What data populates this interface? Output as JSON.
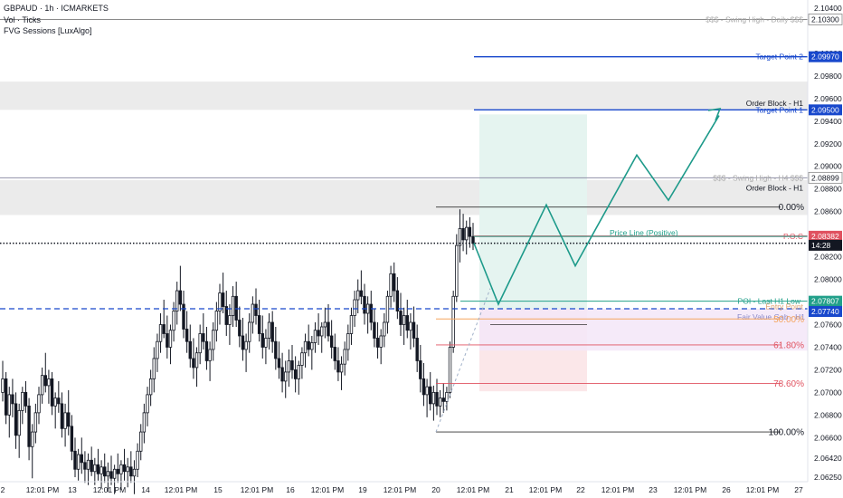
{
  "legend": {
    "symbol": "GBPAUD · 1h · ICMARKETS",
    "indicator1": "Vol · Ticks",
    "indicator2": "FVG Sessions [LuxAlgo]"
  },
  "colors": {
    "up": "#131722",
    "down": "#131722",
    "blue_line": "#1848cc",
    "teal": "#22a08a",
    "red": "#e05260",
    "orange": "#f5a55f",
    "gray_zone": "#ebebeb",
    "fvg": "#f3e6f8",
    "target_zone": "#e5f4f0",
    "stop_zone": "#fbe7e9"
  },
  "chart_data": {
    "type": "candlestick",
    "y_axis": {
      "ticks": [
        "2.10400",
        "2.10300",
        "2.10000",
        "2.09800",
        "2.09600",
        "2.09400",
        "2.09200",
        "2.09000",
        "2.08800",
        "2.08600",
        "2.08400",
        "2.08200",
        "2.08000",
        "2.07800",
        "2.07600",
        "2.07400",
        "2.07200",
        "2.07000",
        "2.06800",
        "2.06600",
        "2.06420",
        "2.06250"
      ],
      "range": [
        2.0621,
        2.1044
      ]
    },
    "x_axis": {
      "ticks": [
        "2",
        "12:01 PM",
        "13",
        "12:01 PM",
        "14",
        "12:01 PM",
        "15",
        "12:01 PM",
        "16",
        "12:01 PM",
        "19",
        "12:01 PM",
        "20",
        "12:01 PM",
        "21",
        "12:01 PM",
        "22",
        "12:01 PM",
        "23",
        "12:01 PM",
        "26",
        "12:01 PM",
        "27"
      ]
    },
    "candles": [
      [
        2.07,
        2.0728,
        2.0692,
        2.0712
      ],
      [
        2.0712,
        2.0718,
        2.0672,
        2.068
      ],
      [
        2.068,
        2.0705,
        2.066,
        2.0698
      ],
      [
        2.0698,
        2.0712,
        2.0678,
        2.069
      ],
      [
        2.069,
        2.07,
        2.065,
        2.0662
      ],
      [
        2.0662,
        2.069,
        2.0642,
        2.0684
      ],
      [
        2.0684,
        2.0705,
        2.0672,
        2.07
      ],
      [
        2.07,
        2.071,
        2.0682,
        2.0688
      ],
      [
        2.0688,
        2.0695,
        2.064,
        2.0652
      ],
      [
        2.0652,
        2.0672,
        2.0624,
        2.0665
      ],
      [
        2.0665,
        2.069,
        2.0655,
        2.0682
      ],
      [
        2.0682,
        2.0705,
        2.0672,
        2.0698
      ],
      [
        2.0698,
        2.0722,
        2.069,
        2.0715
      ],
      [
        2.0715,
        2.0735,
        2.07,
        2.0706
      ],
      [
        2.0706,
        2.072,
        2.069,
        2.0712
      ],
      [
        2.0712,
        2.0718,
        2.068,
        2.0688
      ],
      [
        2.0688,
        2.07,
        2.0668,
        2.0695
      ],
      [
        2.0695,
        2.071,
        2.0682,
        2.069
      ],
      [
        2.069,
        2.07,
        2.066,
        2.0668
      ],
      [
        2.0668,
        2.069,
        2.0652,
        2.0682
      ],
      [
        2.0682,
        2.0702,
        2.0662,
        2.067
      ],
      [
        2.067,
        2.068,
        2.064,
        2.0648
      ],
      [
        2.0648,
        2.066,
        2.0625,
        2.0632
      ],
      [
        2.0632,
        2.065,
        2.0622,
        2.0645
      ],
      [
        2.0645,
        2.066,
        2.0628,
        2.0638
      ],
      [
        2.0638,
        2.0648,
        2.062,
        2.0632
      ],
      [
        2.0632,
        2.0646,
        2.0618,
        2.064
      ],
      [
        2.064,
        2.0652,
        2.0626,
        2.063
      ],
      [
        2.063,
        2.0642,
        2.0618,
        2.0636
      ],
      [
        2.0636,
        2.065,
        2.0622,
        2.0628
      ],
      [
        2.0628,
        2.064,
        2.0615,
        2.0634
      ],
      [
        2.0634,
        2.0646,
        2.062,
        2.0626
      ],
      [
        2.0626,
        2.0638,
        2.0612,
        2.063
      ],
      [
        2.063,
        2.0644,
        2.0618,
        2.0624
      ],
      [
        2.0624,
        2.0636,
        2.061,
        2.0632
      ],
      [
        2.0632,
        2.0646,
        2.062,
        2.0628
      ],
      [
        2.0628,
        2.064,
        2.0614,
        2.0636
      ],
      [
        2.0636,
        2.065,
        2.0622,
        2.063
      ],
      [
        2.063,
        2.0642,
        2.0616,
        2.0634
      ],
      [
        2.0634,
        2.0648,
        2.062,
        2.0626
      ],
      [
        2.0626,
        2.064,
        2.061,
        2.0632
      ],
      [
        2.0632,
        2.0655,
        2.0625,
        2.0648
      ],
      [
        2.0648,
        2.0672,
        2.064,
        2.0665
      ],
      [
        2.0665,
        2.069,
        2.0655,
        2.0682
      ],
      [
        2.0682,
        2.0705,
        2.067,
        2.0698
      ],
      [
        2.0698,
        2.072,
        2.0688,
        2.0712
      ],
      [
        2.0712,
        2.074,
        2.07,
        2.073
      ],
      [
        2.073,
        2.0752,
        2.0718,
        2.0745
      ],
      [
        2.0745,
        2.077,
        2.0735,
        2.076
      ],
      [
        2.076,
        2.0782,
        2.0748,
        2.0752
      ],
      [
        2.0752,
        2.0768,
        2.073,
        2.074
      ],
      [
        2.074,
        2.076,
        2.0725,
        2.0755
      ],
      [
        2.0755,
        2.078,
        2.0745,
        2.0772
      ],
      [
        2.0772,
        2.0798,
        2.076,
        2.079
      ],
      [
        2.079,
        2.0812,
        2.0772,
        2.0778
      ],
      [
        2.0778,
        2.079,
        2.0748,
        2.0756
      ],
      [
        2.0756,
        2.0772,
        2.0735,
        2.0745
      ],
      [
        2.0745,
        2.076,
        2.0722,
        2.073
      ],
      [
        2.073,
        2.0748,
        2.0712,
        2.0722
      ],
      [
        2.0722,
        2.074,
        2.0705,
        2.0735
      ],
      [
        2.0735,
        2.076,
        2.0725,
        2.0752
      ],
      [
        2.0752,
        2.077,
        2.0738,
        2.0745
      ],
      [
        2.0745,
        2.0758,
        2.072,
        2.0728
      ],
      [
        2.0728,
        2.0745,
        2.071,
        2.0738
      ],
      [
        2.0738,
        2.0762,
        2.0728,
        2.0755
      ],
      [
        2.0755,
        2.078,
        2.0745,
        2.0772
      ],
      [
        2.0772,
        2.0796,
        2.076,
        2.0788
      ],
      [
        2.0788,
        2.0806,
        2.077,
        2.0776
      ],
      [
        2.0776,
        2.079,
        2.075,
        2.076
      ],
      [
        2.076,
        2.0778,
        2.0742,
        2.0768
      ],
      [
        2.0768,
        2.0794,
        2.0758,
        2.0785
      ],
      [
        2.0785,
        2.0798,
        2.0758,
        2.0764
      ],
      [
        2.0764,
        2.0776,
        2.074,
        2.075
      ],
      [
        2.075,
        2.0766,
        2.0728,
        2.0738
      ],
      [
        2.0738,
        2.0752,
        2.0718,
        2.0745
      ],
      [
        2.0745,
        2.077,
        2.0735,
        2.0762
      ],
      [
        2.0762,
        2.0785,
        2.0752,
        2.0778
      ],
      [
        2.0778,
        2.0792,
        2.076,
        2.0768
      ],
      [
        2.0768,
        2.0782,
        2.0745,
        2.0752
      ],
      [
        2.0752,
        2.0768,
        2.073,
        2.074
      ],
      [
        2.074,
        2.0756,
        2.0725,
        2.0748
      ],
      [
        2.0748,
        2.077,
        2.0738,
        2.0762
      ],
      [
        2.0762,
        2.0772,
        2.0735,
        2.0745
      ],
      [
        2.0745,
        2.0758,
        2.072,
        2.073
      ],
      [
        2.073,
        2.0745,
        2.0712,
        2.0722
      ],
      [
        2.0722,
        2.0735,
        2.07,
        2.071
      ],
      [
        2.071,
        2.0728,
        2.0695,
        2.0718
      ],
      [
        2.0718,
        2.0738,
        2.0705,
        2.0728
      ],
      [
        2.0728,
        2.0742,
        2.0712,
        2.072
      ],
      [
        2.072,
        2.0732,
        2.07,
        2.0712
      ],
      [
        2.0712,
        2.0728,
        2.0698,
        2.0724
      ],
      [
        2.0724,
        2.074,
        2.0712,
        2.0735
      ],
      [
        2.0735,
        2.0752,
        2.0722,
        2.0745
      ],
      [
        2.0745,
        2.076,
        2.0732,
        2.0738
      ],
      [
        2.0738,
        2.075,
        2.072,
        2.0744
      ],
      [
        2.0744,
        2.0762,
        2.0735,
        2.0755
      ],
      [
        2.0755,
        2.077,
        2.0742,
        2.075
      ],
      [
        2.075,
        2.0762,
        2.0735,
        2.0758
      ],
      [
        2.0758,
        2.0775,
        2.0748,
        2.0762
      ],
      [
        2.0762,
        2.0778,
        2.0745,
        2.075
      ],
      [
        2.075,
        2.0764,
        2.073,
        2.074
      ],
      [
        2.074,
        2.0752,
        2.072,
        2.0728
      ],
      [
        2.0728,
        2.074,
        2.071,
        2.0718
      ],
      [
        2.0718,
        2.0732,
        2.0702,
        2.0725
      ],
      [
        2.0725,
        2.0745,
        2.0715,
        2.0738
      ],
      [
        2.0738,
        2.076,
        2.0728,
        2.0752
      ],
      [
        2.0752,
        2.0775,
        2.0742,
        2.0768
      ],
      [
        2.0768,
        2.079,
        2.0758,
        2.0782
      ],
      [
        2.0782,
        2.08,
        2.077,
        2.079
      ],
      [
        2.079,
        2.0808,
        2.0778,
        2.0785
      ],
      [
        2.0785,
        2.0796,
        2.076,
        2.077
      ],
      [
        2.077,
        2.0785,
        2.0752,
        2.0778
      ],
      [
        2.0778,
        2.079,
        2.0755,
        2.0762
      ],
      [
        2.0762,
        2.0774,
        2.074,
        2.0748
      ],
      [
        2.0748,
        2.0762,
        2.073,
        2.074
      ],
      [
        2.074,
        2.0756,
        2.0725,
        2.075
      ],
      [
        2.075,
        2.077,
        2.074,
        2.0762
      ],
      [
        2.0762,
        2.079,
        2.0752,
        2.0785
      ],
      [
        2.0785,
        2.0812,
        2.0775,
        2.0805
      ],
      [
        2.0805,
        2.0815,
        2.078,
        2.079
      ],
      [
        2.079,
        2.0802,
        2.0765,
        2.0772
      ],
      [
        2.0772,
        2.0788,
        2.075,
        2.076
      ],
      [
        2.076,
        2.0775,
        2.0742,
        2.0768
      ],
      [
        2.0768,
        2.0782,
        2.0748,
        2.0755
      ],
      [
        2.0755,
        2.077,
        2.0738,
        2.0762
      ],
      [
        2.0762,
        2.0776,
        2.074,
        2.0748
      ],
      [
        2.0748,
        2.076,
        2.0718,
        2.0728
      ],
      [
        2.0728,
        2.0742,
        2.07,
        2.0712
      ],
      [
        2.0712,
        2.0726,
        2.0688,
        2.0698
      ],
      [
        2.0698,
        2.0712,
        2.0678,
        2.0705
      ],
      [
        2.0705,
        2.0718,
        2.0684,
        2.069
      ],
      [
        2.069,
        2.0706,
        2.0675,
        2.07
      ],
      [
        2.07,
        2.0712,
        2.068,
        2.0688
      ],
      [
        2.0688,
        2.0702,
        2.0678,
        2.0695
      ],
      [
        2.0695,
        2.0708,
        2.0682,
        2.0692
      ],
      [
        2.0692,
        2.0705,
        2.0684,
        2.07
      ],
      [
        2.07,
        2.0745,
        2.0695,
        2.074
      ],
      [
        2.074,
        2.079,
        2.0735,
        2.0785
      ],
      [
        2.0785,
        2.084,
        2.078,
        2.083
      ],
      [
        2.083,
        2.0862,
        2.0815,
        2.0845
      ],
      [
        2.0845,
        2.0858,
        2.0825,
        2.0835
      ],
      [
        2.0835,
        2.0852,
        2.0822,
        2.0846
      ],
      [
        2.0846,
        2.0855,
        2.0828,
        2.0838
      ],
      [
        2.0838,
        2.085,
        2.0826,
        2.0832
      ]
    ],
    "horizontal_levels": [
      {
        "label": "$$$ - Swing High - Daily $$$",
        "price": 2.103,
        "tag": "2.10300"
      },
      {
        "label": "Target Point 2",
        "price": 2.0997,
        "tag": "2.09970"
      },
      {
        "label": "Order Block - H1",
        "zone": [
          2.095,
          2.0975
        ]
      },
      {
        "label": "Target Point 1",
        "price": 2.095,
        "tag": "2.09500"
      },
      {
        "label": "$$$ - Swing High - H4 $$$",
        "price": 2.08899,
        "tag": "2.08899"
      },
      {
        "label": "Order Block - H1",
        "zone": [
          2.0857,
          2.0888
        ]
      },
      {
        "label": "Price Line (Positive)",
        "price": 2.0838
      },
      {
        "label": "P.O.C",
        "price": 2.08382,
        "tag": "2.08382"
      },
      {
        "label": "POI - Last H1 Low",
        "price": 2.07807,
        "tag": "2.07807"
      },
      {
        "label": "Entry Point",
        "price": 2.0774,
        "tag": "2.07740"
      },
      {
        "label": "Fair Value Gab - H1",
        "zone": [
          2.0737,
          2.0774
        ]
      }
    ],
    "fib_levels": [
      {
        "label": "0.00%",
        "price": 2.0864
      },
      {
        "label": "50.00%",
        "price": 2.0765
      },
      {
        "label": "61.80%",
        "price": 2.0742
      },
      {
        "label": "78.60%",
        "price": 2.0708
      },
      {
        "label": "100.00%",
        "price": 2.0665
      }
    ],
    "current_price_tag": "14:28",
    "current_price": 2.0832,
    "projected_path": [
      [
        0,
        2.0832
      ],
      [
        1,
        2.0778
      ],
      [
        2,
        2.0866
      ],
      [
        3,
        2.0812
      ],
      [
        4,
        2.091
      ],
      [
        5,
        2.087
      ],
      [
        6,
        2.0945
      ]
    ]
  }
}
